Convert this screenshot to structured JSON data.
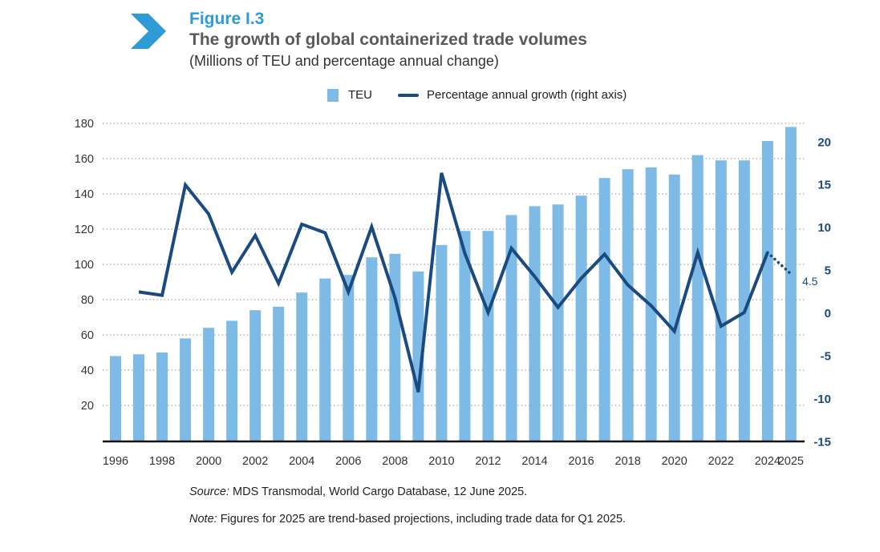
{
  "header": {
    "figure_label": "Figure I.3",
    "title": "The growth of global containerized trade volumes",
    "subtitle": "(Millions of TEU and percentage annual change)"
  },
  "footer": {
    "source_label": "Source:",
    "source_text": " MDS Transmodal, World Cargo Database, 12 June 2025.",
    "note_label": "Note:",
    "note_text": " Figures for 2025 are trend-based projections, including trade data for Q1 2025."
  },
  "colors": {
    "bar": "#7dbbe6",
    "line": "#1b4a80",
    "accent": "#2e9ad6"
  },
  "icons": {
    "figure_marker": "chevron-right-icon"
  },
  "chart_data": {
    "type": "bar+line",
    "title": "The growth of global containerized trade volumes",
    "legend": {
      "position": "top-center",
      "entries": [
        "TEU",
        "Percentage annual growth (right axis)"
      ]
    },
    "x": [
      1996,
      1997,
      1998,
      1999,
      2000,
      2001,
      2002,
      2003,
      2004,
      2005,
      2006,
      2007,
      2008,
      2009,
      2010,
      2011,
      2012,
      2013,
      2014,
      2015,
      2016,
      2017,
      2018,
      2019,
      2020,
      2021,
      2022,
      2023,
      2024,
      2025
    ],
    "x_tick_labels": [
      "1996",
      "1998",
      "2000",
      "2002",
      "2004",
      "2006",
      "2008",
      "2010",
      "2012",
      "2014",
      "2016",
      "2018",
      "2020",
      "2022",
      "2024",
      "2025"
    ],
    "series": [
      {
        "name": "TEU",
        "type": "bar",
        "axis": "left",
        "values": [
          48,
          49,
          50,
          58,
          64,
          68,
          74,
          76,
          84,
          92,
          94,
          104,
          106,
          96,
          111,
          119,
          119,
          128,
          133,
          134,
          139,
          149,
          154,
          155,
          151,
          162,
          159,
          159,
          170,
          178
        ]
      },
      {
        "name": "Percentage annual growth (right axis)",
        "type": "line",
        "axis": "right",
        "values": [
          null,
          2.4,
          2.0,
          14.9,
          11.5,
          4.7,
          9.0,
          3.4,
          10.3,
          9.3,
          2.4,
          10.0,
          1.7,
          -9.3,
          16.3,
          6.9,
          0.0,
          7.5,
          4.2,
          0.6,
          4.0,
          6.8,
          3.2,
          0.8,
          -2.2,
          7.0,
          -1.6,
          0.0,
          7.0,
          4.5
        ],
        "projected_from": 2024
      }
    ],
    "annotations": [
      {
        "text": "4.5",
        "x": 2025
      }
    ],
    "y_left": {
      "range": [
        0,
        180
      ],
      "ticks": [
        20,
        40,
        60,
        80,
        100,
        120,
        140,
        160,
        180
      ]
    },
    "y_right": {
      "range": [
        -15,
        22
      ],
      "ticks": [
        -15,
        -10,
        -5,
        0,
        5,
        10,
        15,
        20
      ]
    },
    "grid": true
  }
}
